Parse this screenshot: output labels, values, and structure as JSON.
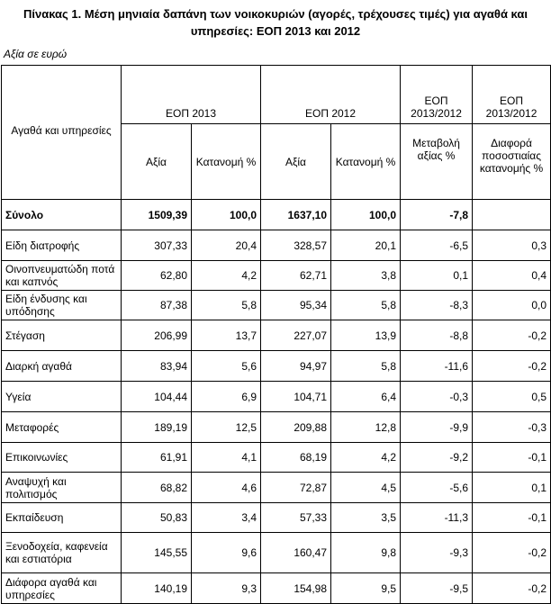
{
  "title_line1": "Πίνακας 1. Μέση μηνιαία δαπάνη των νοικοκυριών (αγορές, τρέχουσες τιμές) για αγαθά και",
  "title_line2": "υπηρεσίες: ΕΟΠ 2013 και 2012",
  "unit": "Αξία σε ευρώ",
  "headers": {
    "row_label": "Αγαθά και υπηρεσίες",
    "group_2013": "ΕΟΠ 2013",
    "group_2012": "ΕΟΠ 2012",
    "change_group": "ΕΟΠ 2013/2012",
    "diff_group": "ΕΟΠ 2013/2012",
    "value": "Αξία",
    "distribution": "Κατανομή %",
    "value_change": "Μεταβολή αξίας %",
    "distribution_diff": "Διαφορά ποσοστιαίας κατανομής %"
  },
  "rows": [
    {
      "label": "Σύνολο",
      "v2013": "1509,39",
      "d2013": "100,0",
      "v2012": "1637,10",
      "d2012": "100,0",
      "change": "-7,8",
      "diff": "",
      "total": true
    },
    {
      "label": "Είδη διατροφής",
      "v2013": "307,33",
      "d2013": "20,4",
      "v2012": "328,57",
      "d2012": "20,1",
      "change": "-6,5",
      "diff": "0,3"
    },
    {
      "label": "Οινοπνευματώδη ποτά και καπνός",
      "v2013": "62,80",
      "d2013": "4,2",
      "v2012": "62,71",
      "d2012": "3,8",
      "change": "0,1",
      "diff": "0,4"
    },
    {
      "label": "Είδη ένδυσης και υπόδησης",
      "v2013": "87,38",
      "d2013": "5,8",
      "v2012": "95,34",
      "d2012": "5,8",
      "change": "-8,3",
      "diff": "0,0"
    },
    {
      "label": "Στέγαση",
      "v2013": "206,99",
      "d2013": "13,7",
      "v2012": "227,07",
      "d2012": "13,9",
      "change": "-8,8",
      "diff": "-0,2"
    },
    {
      "label": "Διαρκή αγαθά",
      "v2013": "83,94",
      "d2013": "5,6",
      "v2012": "94,97",
      "d2012": "5,8",
      "change": "-11,6",
      "diff": "-0,2"
    },
    {
      "label": "Υγεία",
      "v2013": "104,44",
      "d2013": "6,9",
      "v2012": "104,71",
      "d2012": "6,4",
      "change": "-0,3",
      "diff": "0,5"
    },
    {
      "label": "Μεταφορές",
      "v2013": "189,19",
      "d2013": "12,5",
      "v2012": "209,88",
      "d2012": "12,8",
      "change": "-9,9",
      "diff": "-0,3"
    },
    {
      "label": "Επικοινωνίες",
      "v2013": "61,91",
      "d2013": "4,1",
      "v2012": "68,19",
      "d2012": "4,2",
      "change": "-9,2",
      "diff": "-0,1"
    },
    {
      "label": "Αναψυχή και πολιτισμός",
      "v2013": "68,82",
      "d2013": "4,6",
      "v2012": "72,87",
      "d2012": "4,5",
      "change": "-5,6",
      "diff": "0,1"
    },
    {
      "label": "Εκπαίδευση",
      "v2013": "50,83",
      "d2013": "3,4",
      "v2012": "57,33",
      "d2012": "3,5",
      "change": "-11,3",
      "diff": "-0,1"
    },
    {
      "label": "Ξενοδοχεία, καφενεία και εστιατόρια",
      "v2013": "145,55",
      "d2013": "9,6",
      "v2012": "160,47",
      "d2012": "9,8",
      "change": "-9,3",
      "diff": "-0,2"
    },
    {
      "label": "Διάφορα αγαθά και υπηρεσίες",
      "v2013": "140,19",
      "d2013": "9,3",
      "v2012": "154,98",
      "d2012": "9,5",
      "change": "-9,5",
      "diff": "-0,2"
    }
  ]
}
